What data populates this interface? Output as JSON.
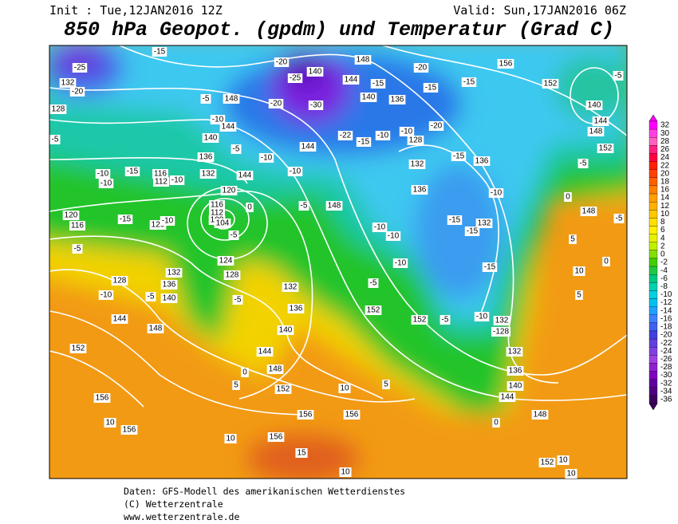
{
  "header": {
    "init": "Init : Tue,12JAN2016 12Z",
    "valid": "Valid: Sun,17JAN2016 06Z",
    "title": "850 hPa Geopot. (gpdm) und Temperatur (Grad C)"
  },
  "colorbar": {
    "levels": [
      32,
      30,
      28,
      26,
      24,
      22,
      20,
      18,
      16,
      14,
      12,
      10,
      8,
      6,
      4,
      2,
      0,
      -2,
      -4,
      -6,
      -8,
      -10,
      -12,
      -14,
      -16,
      -18,
      -20,
      -22,
      -24,
      -26,
      -28,
      -30,
      -32,
      -34,
      -36
    ]
  },
  "contour_labels": [
    -25,
    -20,
    132,
    128,
    -5,
    -15,
    148,
    -5,
    -10,
    -20,
    -25,
    -30,
    -20,
    140,
    144,
    148,
    -15,
    140,
    136,
    -20,
    -15,
    -15,
    156,
    152,
    -5,
    140,
    144,
    148,
    152,
    -5,
    -10,
    148,
    0,
    132,
    -15,
    -15,
    -15,
    -10,
    -10,
    -10,
    136,
    -10,
    128,
    -10,
    -15,
    -22,
    -10,
    -10,
    144,
    132,
    -15,
    -20,
    136,
    148,
    -5,
    144,
    132,
    136,
    -5,
    140,
    144,
    -10,
    -10,
    -15,
    116,
    112,
    -10,
    120,
    116,
    120,
    -10,
    -15,
    120,
    116,
    112,
    108,
    104,
    -5,
    0,
    124,
    128,
    132,
    136,
    140,
    148,
    128,
    144,
    152,
    -5,
    -10,
    -5,
    132,
    136,
    140,
    144,
    148,
    152,
    156,
    156,
    156,
    -5,
    152,
    152,
    -5,
    -10,
    132,
    -128,
    132,
    136,
    140,
    144,
    148,
    152,
    10,
    10,
    10,
    10,
    15,
    10,
    5,
    5,
    0,
    0,
    156,
    156,
    10,
    5,
    10,
    0,
    -5,
    5,
    -5
  ],
  "footer": [
    "Daten: GFS-Modell des amerikanischen Wetterdienstes",
    "(C) Wetterzentrale",
    "www.wetterzentrale.de"
  ]
}
